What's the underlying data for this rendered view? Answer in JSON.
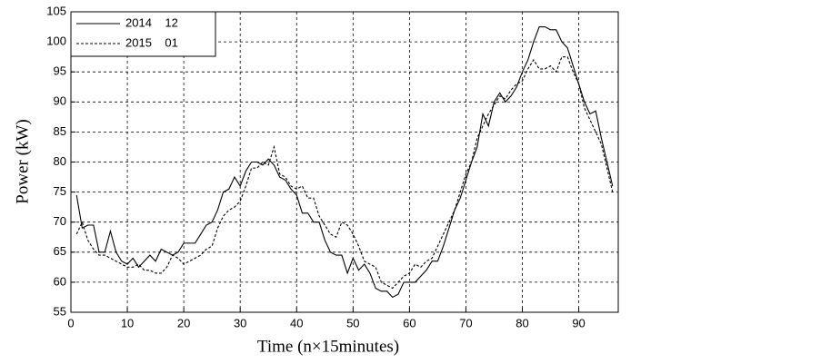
{
  "chart_data": {
    "type": "line",
    "xlabel": "Time (n×15minutes)",
    "ylabel": "Power (kW)",
    "x": [
      1,
      2,
      3,
      4,
      5,
      6,
      7,
      8,
      9,
      10,
      11,
      12,
      13,
      14,
      15,
      16,
      17,
      18,
      19,
      20,
      21,
      22,
      23,
      24,
      25,
      26,
      27,
      28,
      29,
      30,
      31,
      32,
      33,
      34,
      35,
      36,
      37,
      38,
      39,
      40,
      41,
      42,
      43,
      44,
      45,
      46,
      47,
      48,
      49,
      50,
      51,
      52,
      53,
      54,
      55,
      56,
      57,
      58,
      59,
      60,
      61,
      62,
      63,
      64,
      65,
      66,
      67,
      68,
      69,
      70,
      71,
      72,
      73,
      74,
      75,
      76,
      77,
      78,
      79,
      80,
      81,
      82,
      83,
      84,
      85,
      86,
      87,
      88,
      89,
      90,
      91,
      92,
      93,
      94,
      95,
      96
    ],
    "series": [
      {
        "name": "2014    12",
        "color": "#000000",
        "dash": "solid",
        "values": [
          74.5,
          69,
          69.5,
          69.5,
          65,
          65,
          68.5,
          65,
          63.5,
          63,
          64,
          62.5,
          63.5,
          64.5,
          63.5,
          65.5,
          65,
          64.5,
          65,
          66.5,
          66.5,
          66.5,
          68,
          69.5,
          70,
          72,
          75,
          75.5,
          77.5,
          76,
          78.5,
          80,
          80,
          79.5,
          80.5,
          79.5,
          77.5,
          77,
          75.5,
          74.5,
          71.5,
          71.5,
          70,
          70,
          67,
          65,
          64.5,
          64.5,
          61.5,
          64,
          62,
          63,
          61.5,
          59,
          58.5,
          58.5,
          57.5,
          58,
          60,
          60,
          60,
          61,
          62,
          63.5,
          63.5,
          66,
          69,
          72,
          74,
          77,
          80,
          82.5,
          88,
          86,
          90,
          91.5,
          90,
          91,
          92.5,
          95,
          97,
          100,
          102.5,
          102.5,
          102,
          102,
          100,
          99,
          96,
          93,
          90,
          88,
          88.5,
          84,
          80,
          76
        ]
      },
      {
        "name": "2015    01",
        "color": "#000000",
        "dash": "dashed",
        "values": [
          68,
          70,
          67,
          65.5,
          64.5,
          64.5,
          64,
          63.5,
          63,
          62.5,
          62.5,
          63,
          62,
          62,
          61.5,
          61.5,
          62.5,
          64.5,
          64,
          63,
          63.5,
          64,
          64.5,
          65.5,
          66,
          69,
          71,
          72,
          72.5,
          73.5,
          76,
          79,
          79,
          80,
          79.5,
          82.5,
          78,
          77.5,
          76,
          75.5,
          76,
          74,
          74,
          71,
          69.5,
          68,
          67.5,
          70,
          69.5,
          68,
          66,
          63.5,
          63,
          62.5,
          60,
          59.5,
          59,
          60,
          61,
          61.5,
          63,
          62.5,
          63.5,
          64,
          66,
          68,
          70,
          72,
          75,
          78,
          80,
          84,
          86,
          88,
          89.5,
          91,
          90.5,
          92,
          93,
          93.5,
          95.5,
          97,
          95.5,
          95.5,
          96,
          95,
          97.5,
          97.5,
          95,
          93,
          89,
          87,
          85,
          83,
          79,
          75
        ]
      }
    ],
    "xlim": [
      0,
      97
    ],
    "xticks": [
      0,
      10,
      20,
      30,
      40,
      50,
      60,
      70,
      80,
      90
    ],
    "ylim": [
      55,
      105
    ],
    "yticks": [
      55,
      60,
      65,
      70,
      75,
      80,
      85,
      90,
      95,
      100,
      105
    ],
    "grid": true,
    "legend": "upper left"
  }
}
